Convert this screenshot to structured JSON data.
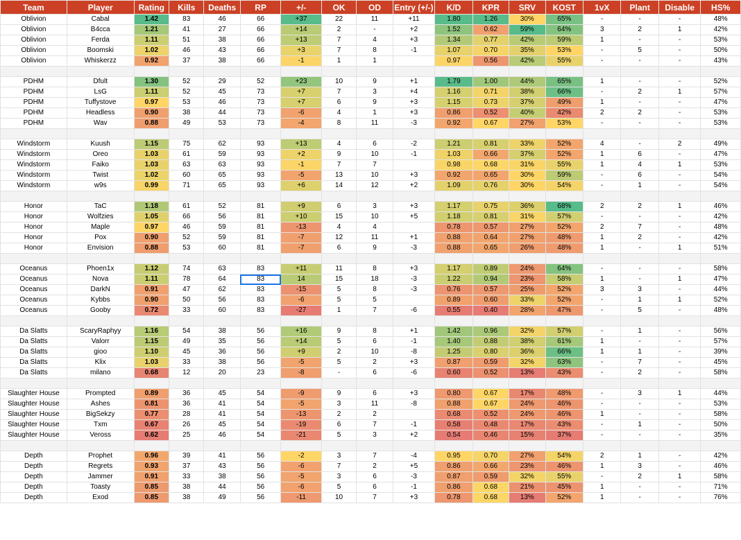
{
  "headers": [
    "Team",
    "Player",
    "Rating",
    "Kills",
    "Deaths",
    "RP",
    "+/-",
    "OK",
    "OD",
    "Entry (+/-)",
    "K/D",
    "KPR",
    "SRV",
    "KOST",
    "1vX",
    "Plant",
    "Disable",
    "HS%"
  ],
  "colors": {
    "header_bg": "#cc4125",
    "header_text": "#ffffff",
    "scale_high": "#57bb8a",
    "scale_mid": "#ffd666",
    "scale_low": "#e67c73",
    "spacer_row": "#f3f3f3",
    "selection": "#1a73e8"
  },
  "selected_cell": {
    "player": "Nova",
    "column": "RP"
  },
  "rows": [
    {
      "type": "player",
      "team": "Oblivion",
      "player": "Cabal",
      "rating": "1.42",
      "kills": "83",
      "deaths": "46",
      "rp": "66",
      "pm": "+37",
      "ok": "22",
      "od": "11",
      "entry": "+11",
      "kd": "1.80",
      "kpr": "1.26",
      "srv": "30%",
      "kost": "65%",
      "onevx": "-",
      "plant": "-",
      "disable": "-",
      "hs": "48%"
    },
    {
      "type": "player",
      "team": "Oblivion",
      "player": "B4cca",
      "rating": "1.21",
      "kills": "41",
      "deaths": "27",
      "rp": "66",
      "pm": "+14",
      "ok": "2",
      "od": "-",
      "entry": "+2",
      "kd": "1.52",
      "kpr": "0.62",
      "srv": "59%",
      "kost": "64%",
      "onevx": "3",
      "plant": "2",
      "disable": "1",
      "hs": "42%"
    },
    {
      "type": "player",
      "team": "Oblivion",
      "player": "Ferda",
      "rating": "1.11",
      "kills": "51",
      "deaths": "38",
      "rp": "66",
      "pm": "+13",
      "ok": "7",
      "od": "4",
      "entry": "+3",
      "kd": "1.34",
      "kpr": "0.77",
      "srv": "42%",
      "kost": "59%",
      "onevx": "1",
      "plant": "-",
      "disable": "-",
      "hs": "53%"
    },
    {
      "type": "player",
      "team": "Oblivion",
      "player": "Boomski",
      "rating": "1.02",
      "kills": "46",
      "deaths": "43",
      "rp": "66",
      "pm": "+3",
      "ok": "7",
      "od": "8",
      "entry": "-1",
      "kd": "1.07",
      "kpr": "0.70",
      "srv": "35%",
      "kost": "53%",
      "onevx": "-",
      "plant": "5",
      "disable": "-",
      "hs": "50%"
    },
    {
      "type": "player",
      "team": "Oblivion",
      "player": "Whiskerzz",
      "rating": "0.92",
      "kills": "37",
      "deaths": "38",
      "rp": "66",
      "pm": "-1",
      "ok": "1",
      "od": "1",
      "entry": "",
      "kd": "0.97",
      "kpr": "0.56",
      "srv": "42%",
      "kost": "55%",
      "onevx": "-",
      "plant": "-",
      "disable": "-",
      "hs": "43%"
    },
    {
      "type": "sep"
    },
    {
      "type": "player",
      "team": "PDHM",
      "player": "Dfult",
      "rating": "1.30",
      "kills": "52",
      "deaths": "29",
      "rp": "52",
      "pm": "+23",
      "ok": "10",
      "od": "9",
      "entry": "+1",
      "kd": "1.79",
      "kpr": "1.00",
      "srv": "44%",
      "kost": "65%",
      "onevx": "1",
      "plant": "-",
      "disable": "-",
      "hs": "52%"
    },
    {
      "type": "player",
      "team": "PDHM",
      "player": "LsG",
      "rating": "1.11",
      "kills": "52",
      "deaths": "45",
      "rp": "73",
      "pm": "+7",
      "ok": "7",
      "od": "3",
      "entry": "+4",
      "kd": "1.16",
      "kpr": "0.71",
      "srv": "38%",
      "kost": "66%",
      "onevx": "-",
      "plant": "2",
      "disable": "1",
      "hs": "57%"
    },
    {
      "type": "player",
      "team": "PDHM",
      "player": "Tuffystove",
      "rating": "0.97",
      "kills": "53",
      "deaths": "46",
      "rp": "73",
      "pm": "+7",
      "ok": "6",
      "od": "9",
      "entry": "+3",
      "kd": "1.15",
      "kpr": "0.73",
      "srv": "37%",
      "kost": "49%",
      "onevx": "1",
      "plant": "-",
      "disable": "-",
      "hs": "47%"
    },
    {
      "type": "player",
      "team": "PDHM",
      "player": "Headless",
      "rating": "0.90",
      "kills": "38",
      "deaths": "44",
      "rp": "73",
      "pm": "-6",
      "ok": "4",
      "od": "1",
      "entry": "+3",
      "kd": "0.86",
      "kpr": "0.52",
      "srv": "40%",
      "kost": "42%",
      "onevx": "2",
      "plant": "2",
      "disable": "-",
      "hs": "53%"
    },
    {
      "type": "player",
      "team": "PDHM",
      "player": "Wav",
      "rating": "0.88",
      "kills": "49",
      "deaths": "53",
      "rp": "73",
      "pm": "-4",
      "ok": "8",
      "od": "11",
      "entry": "-3",
      "kd": "0.92",
      "kpr": "0.67",
      "srv": "27%",
      "kost": "53%",
      "onevx": "-",
      "plant": "-",
      "disable": "-",
      "hs": "53%"
    },
    {
      "type": "sep"
    },
    {
      "type": "player",
      "team": "Windstorm",
      "player": "Kuush",
      "rating": "1.15",
      "kills": "75",
      "deaths": "62",
      "rp": "93",
      "pm": "+13",
      "ok": "4",
      "od": "6",
      "entry": "-2",
      "kd": "1.21",
      "kpr": "0.81",
      "srv": "33%",
      "kost": "52%",
      "onevx": "4",
      "plant": "-",
      "disable": "2",
      "hs": "49%"
    },
    {
      "type": "player",
      "team": "Windstorm",
      "player": "Oreo",
      "rating": "1.03",
      "kills": "61",
      "deaths": "59",
      "rp": "93",
      "pm": "+2",
      "ok": "9",
      "od": "10",
      "entry": "-1",
      "kd": "1.03",
      "kpr": "0.66",
      "srv": "37%",
      "kost": "52%",
      "onevx": "1",
      "plant": "6",
      "disable": "-",
      "hs": "47%"
    },
    {
      "type": "player",
      "team": "Windstorm",
      "player": "Faiko",
      "rating": "1.03",
      "kills": "63",
      "deaths": "63",
      "rp": "93",
      "pm": "-1",
      "ok": "7",
      "od": "7",
      "entry": "",
      "kd": "0.98",
      "kpr": "0.68",
      "srv": "31%",
      "kost": "55%",
      "onevx": "1",
      "plant": "4",
      "disable": "1",
      "hs": "53%"
    },
    {
      "type": "player",
      "team": "Windstorm",
      "player": "Twist",
      "rating": "1.02",
      "kills": "60",
      "deaths": "65",
      "rp": "93",
      "pm": "-5",
      "ok": "13",
      "od": "10",
      "entry": "+3",
      "kd": "0.92",
      "kpr": "0.65",
      "srv": "30%",
      "kost": "59%",
      "onevx": "-",
      "plant": "6",
      "disable": "-",
      "hs": "54%"
    },
    {
      "type": "player",
      "team": "Windstorm",
      "player": "w9s",
      "rating": "0.99",
      "kills": "71",
      "deaths": "65",
      "rp": "93",
      "pm": "+6",
      "ok": "14",
      "od": "12",
      "entry": "+2",
      "kd": "1.09",
      "kpr": "0.76",
      "srv": "30%",
      "kost": "54%",
      "onevx": "-",
      "plant": "1",
      "disable": "-",
      "hs": "54%"
    },
    {
      "type": "sep"
    },
    {
      "type": "player",
      "team": "Honor",
      "player": "TaC",
      "rating": "1.18",
      "kills": "61",
      "deaths": "52",
      "rp": "81",
      "pm": "+9",
      "ok": "6",
      "od": "3",
      "entry": "+3",
      "kd": "1.17",
      "kpr": "0.75",
      "srv": "36%",
      "kost": "68%",
      "onevx": "2",
      "plant": "2",
      "disable": "1",
      "hs": "46%"
    },
    {
      "type": "player",
      "team": "Honor",
      "player": "Wolfzies",
      "rating": "1.05",
      "kills": "66",
      "deaths": "56",
      "rp": "81",
      "pm": "+10",
      "ok": "15",
      "od": "10",
      "entry": "+5",
      "kd": "1.18",
      "kpr": "0.81",
      "srv": "31%",
      "kost": "57%",
      "onevx": "-",
      "plant": "-",
      "disable": "-",
      "hs": "42%"
    },
    {
      "type": "player",
      "team": "Honor",
      "player": "Maple",
      "rating": "0.97",
      "kills": "46",
      "deaths": "59",
      "rp": "81",
      "pm": "-13",
      "ok": "4",
      "od": "4",
      "entry": "",
      "kd": "0.78",
      "kpr": "0.57",
      "srv": "27%",
      "kost": "52%",
      "onevx": "2",
      "plant": "7",
      "disable": "-",
      "hs": "48%"
    },
    {
      "type": "player",
      "team": "Honor",
      "player": "Pox",
      "rating": "0.90",
      "kills": "52",
      "deaths": "59",
      "rp": "81",
      "pm": "-7",
      "ok": "12",
      "od": "11",
      "entry": "+1",
      "kd": "0.88",
      "kpr": "0.64",
      "srv": "27%",
      "kost": "48%",
      "onevx": "1",
      "plant": "2",
      "disable": "-",
      "hs": "42%"
    },
    {
      "type": "player",
      "team": "Honor",
      "player": "Envision",
      "rating": "0.88",
      "kills": "53",
      "deaths": "60",
      "rp": "81",
      "pm": "-7",
      "ok": "6",
      "od": "9",
      "entry": "-3",
      "kd": "0.88",
      "kpr": "0.65",
      "srv": "26%",
      "kost": "48%",
      "onevx": "1",
      "plant": "-",
      "disable": "1",
      "hs": "51%"
    },
    {
      "type": "sep"
    },
    {
      "type": "player",
      "team": "Oceanus",
      "player": "Phoen1x",
      "rating": "1.12",
      "kills": "74",
      "deaths": "63",
      "rp": "83",
      "pm": "+11",
      "ok": "11",
      "od": "8",
      "entry": "+3",
      "kd": "1.17",
      "kpr": "0.89",
      "srv": "24%",
      "kost": "64%",
      "onevx": "-",
      "plant": "-",
      "disable": "-",
      "hs": "58%"
    },
    {
      "type": "player",
      "team": "Oceanus",
      "player": "Nova",
      "rating": "1.11",
      "kills": "78",
      "deaths": "64",
      "rp": "83",
      "pm": "14",
      "ok": "15",
      "od": "18",
      "entry": "-3",
      "kd": "1.22",
      "kpr": "0.94",
      "srv": "23%",
      "kost": "58%",
      "onevx": "1",
      "plant": "-",
      "disable": "1",
      "hs": "47%"
    },
    {
      "type": "player",
      "team": "Oceanus",
      "player": "DarkN",
      "rating": "0.91",
      "kills": "47",
      "deaths": "62",
      "rp": "83",
      "pm": "-15",
      "ok": "5",
      "od": "8",
      "entry": "-3",
      "kd": "0.76",
      "kpr": "0.57",
      "srv": "25%",
      "kost": "52%",
      "onevx": "3",
      "plant": "3",
      "disable": "-",
      "hs": "44%"
    },
    {
      "type": "player",
      "team": "Oceanus",
      "player": "Kybbs",
      "rating": "0.90",
      "kills": "50",
      "deaths": "56",
      "rp": "83",
      "pm": "-6",
      "ok": "5",
      "od": "5",
      "entry": "",
      "kd": "0.89",
      "kpr": "0.60",
      "srv": "33%",
      "kost": "52%",
      "onevx": "-",
      "plant": "1",
      "disable": "1",
      "hs": "52%"
    },
    {
      "type": "player",
      "team": "Oceanus",
      "player": "Gooby",
      "rating": "0.72",
      "kills": "33",
      "deaths": "60",
      "rp": "83",
      "pm": "-27",
      "ok": "1",
      "od": "7",
      "entry": "-6",
      "kd": "0.55",
      "kpr": "0.40",
      "srv": "28%",
      "kost": "47%",
      "onevx": "-",
      "plant": "5",
      "disable": "-",
      "hs": "48%"
    },
    {
      "type": "sep"
    },
    {
      "type": "player",
      "team": "Da Slatts",
      "player": "ScaryRaphyy",
      "rating": "1.16",
      "kills": "54",
      "deaths": "38",
      "rp": "56",
      "pm": "+16",
      "ok": "9",
      "od": "8",
      "entry": "+1",
      "kd": "1.42",
      "kpr": "0.96",
      "srv": "32%",
      "kost": "57%",
      "onevx": "-",
      "plant": "1",
      "disable": "-",
      "hs": "56%"
    },
    {
      "type": "player",
      "team": "Da Slatts",
      "player": "Valorr",
      "rating": "1.15",
      "kills": "49",
      "deaths": "35",
      "rp": "56",
      "pm": "+14",
      "ok": "5",
      "od": "6",
      "entry": "-1",
      "kd": "1.40",
      "kpr": "0.88",
      "srv": "38%",
      "kost": "61%",
      "onevx": "1",
      "plant": "-",
      "disable": "-",
      "hs": "57%"
    },
    {
      "type": "player",
      "team": "Da Slatts",
      "player": "gioo",
      "rating": "1.10",
      "kills": "45",
      "deaths": "36",
      "rp": "56",
      "pm": "+9",
      "ok": "2",
      "od": "10",
      "entry": "-8",
      "kd": "1.25",
      "kpr": "0.80",
      "srv": "36%",
      "kost": "66%",
      "onevx": "1",
      "plant": "1",
      "disable": "-",
      "hs": "39%"
    },
    {
      "type": "player",
      "team": "Da Slatts",
      "player": "Klix",
      "rating": "1.03",
      "kills": "33",
      "deaths": "38",
      "rp": "56",
      "pm": "-5",
      "ok": "5",
      "od": "2",
      "entry": "+3",
      "kd": "0.87",
      "kpr": "0.59",
      "srv": "32%",
      "kost": "63%",
      "onevx": "-",
      "plant": "7",
      "disable": "-",
      "hs": "45%"
    },
    {
      "type": "player",
      "team": "Da Slatts",
      "player": "milano",
      "rating": "0.68",
      "kills": "12",
      "deaths": "20",
      "rp": "23",
      "pm": "-8",
      "ok": "-",
      "od": "6",
      "entry": "-6",
      "kd": "0.60",
      "kpr": "0.52",
      "srv": "13%",
      "kost": "43%",
      "onevx": "-",
      "plant": "2",
      "disable": "-",
      "hs": "58%"
    },
    {
      "type": "sep"
    },
    {
      "type": "player",
      "team": "Slaughter House",
      "player": "Prompted",
      "rating": "0.89",
      "kills": "36",
      "deaths": "45",
      "rp": "54",
      "pm": "-9",
      "ok": "9",
      "od": "6",
      "entry": "+3",
      "kd": "0.80",
      "kpr": "0.67",
      "srv": "17%",
      "kost": "48%",
      "onevx": "-",
      "plant": "3",
      "disable": "1",
      "hs": "44%"
    },
    {
      "type": "player",
      "team": "Slaughter House",
      "player": "Ashes",
      "rating": "0.81",
      "kills": "36",
      "deaths": "41",
      "rp": "54",
      "pm": "-5",
      "ok": "3",
      "od": "11",
      "entry": "-8",
      "kd": "0.88",
      "kpr": "0.67",
      "srv": "24%",
      "kost": "46%",
      "onevx": "-",
      "plant": "-",
      "disable": "-",
      "hs": "53%"
    },
    {
      "type": "player",
      "team": "Slaughter House",
      "player": "BigSekzy",
      "rating": "0.77",
      "kills": "28",
      "deaths": "41",
      "rp": "54",
      "pm": "-13",
      "ok": "2",
      "od": "2",
      "entry": "",
      "kd": "0.68",
      "kpr": "0.52",
      "srv": "24%",
      "kost": "46%",
      "onevx": "1",
      "plant": "-",
      "disable": "-",
      "hs": "58%"
    },
    {
      "type": "player",
      "team": "Slaughter House",
      "player": "Txm",
      "rating": "0.67",
      "kills": "26",
      "deaths": "45",
      "rp": "54",
      "pm": "-19",
      "ok": "6",
      "od": "7",
      "entry": "-1",
      "kd": "0.58",
      "kpr": "0.48",
      "srv": "17%",
      "kost": "43%",
      "onevx": "-",
      "plant": "1",
      "disable": "-",
      "hs": "50%"
    },
    {
      "type": "player",
      "team": "Slaughter House",
      "player": "Veross",
      "rating": "0.62",
      "kills": "25",
      "deaths": "46",
      "rp": "54",
      "pm": "-21",
      "ok": "5",
      "od": "3",
      "entry": "+2",
      "kd": "0.54",
      "kpr": "0.46",
      "srv": "15%",
      "kost": "37%",
      "onevx": "-",
      "plant": "-",
      "disable": "-",
      "hs": "35%"
    },
    {
      "type": "sep"
    },
    {
      "type": "player",
      "team": "Depth",
      "player": "Prophet",
      "rating": "0.96",
      "kills": "39",
      "deaths": "41",
      "rp": "56",
      "pm": "-2",
      "ok": "3",
      "od": "7",
      "entry": "-4",
      "kd": "0.95",
      "kpr": "0.70",
      "srv": "27%",
      "kost": "54%",
      "onevx": "2",
      "plant": "1",
      "disable": "-",
      "hs": "42%"
    },
    {
      "type": "player",
      "team": "Depth",
      "player": "Regrets",
      "rating": "0.93",
      "kills": "37",
      "deaths": "43",
      "rp": "56",
      "pm": "-6",
      "ok": "7",
      "od": "2",
      "entry": "+5",
      "kd": "0.86",
      "kpr": "0.66",
      "srv": "23%",
      "kost": "46%",
      "onevx": "1",
      "plant": "3",
      "disable": "-",
      "hs": "46%"
    },
    {
      "type": "player",
      "team": "Depth",
      "player": "Jammer",
      "rating": "0.91",
      "kills": "33",
      "deaths": "38",
      "rp": "56",
      "pm": "-5",
      "ok": "3",
      "od": "6",
      "entry": "-3",
      "kd": "0.87",
      "kpr": "0.59",
      "srv": "32%",
      "kost": "55%",
      "onevx": "-",
      "plant": "2",
      "disable": "1",
      "hs": "58%"
    },
    {
      "type": "player",
      "team": "Depth",
      "player": "Toasty",
      "rating": "0.85",
      "kills": "38",
      "deaths": "44",
      "rp": "56",
      "pm": "-6",
      "ok": "5",
      "od": "6",
      "entry": "-1",
      "kd": "0.86",
      "kpr": "0.68",
      "srv": "21%",
      "kost": "45%",
      "onevx": "1",
      "plant": "-",
      "disable": "-",
      "hs": "71%"
    },
    {
      "type": "player",
      "team": "Depth",
      "player": "Exod",
      "rating": "0.85",
      "kills": "38",
      "deaths": "49",
      "rp": "56",
      "pm": "-11",
      "ok": "10",
      "od": "7",
      "entry": "+3",
      "kd": "0.78",
      "kpr": "0.68",
      "srv": "13%",
      "kost": "52%",
      "onevx": "1",
      "plant": "-",
      "disable": "-",
      "hs": "76%"
    }
  ]
}
